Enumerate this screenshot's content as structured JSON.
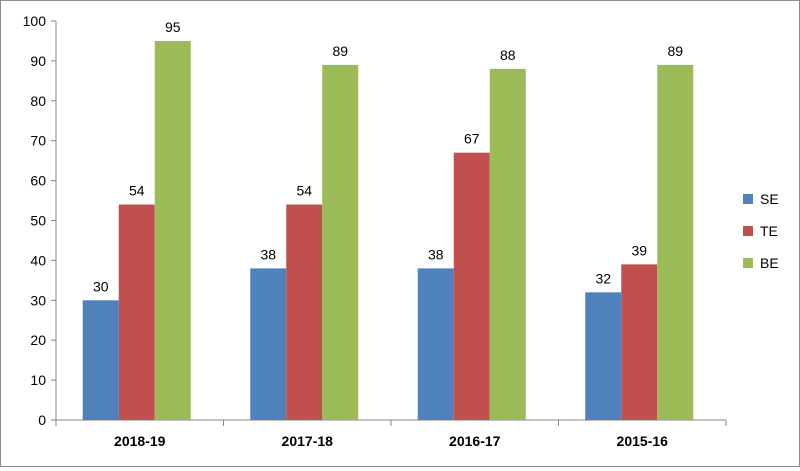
{
  "chart_data": {
    "type": "bar",
    "title": "",
    "xlabel": "",
    "ylabel": "",
    "categories": [
      "2018-19",
      "2017-18",
      "2016-17",
      "2015-16"
    ],
    "series": [
      {
        "name": "SE",
        "color": "#4f81bd",
        "values": [
          30,
          38,
          38,
          32
        ]
      },
      {
        "name": "TE",
        "color": "#c0504d",
        "values": [
          54,
          54,
          67,
          39
        ]
      },
      {
        "name": "BE",
        "color": "#9bbb59",
        "values": [
          95,
          89,
          88,
          89
        ]
      }
    ],
    "ylim": [
      0,
      100
    ],
    "yticks": [
      0,
      10,
      20,
      30,
      40,
      50,
      60,
      70,
      80,
      90,
      100
    ],
    "grid": false,
    "legend_position": "right"
  }
}
